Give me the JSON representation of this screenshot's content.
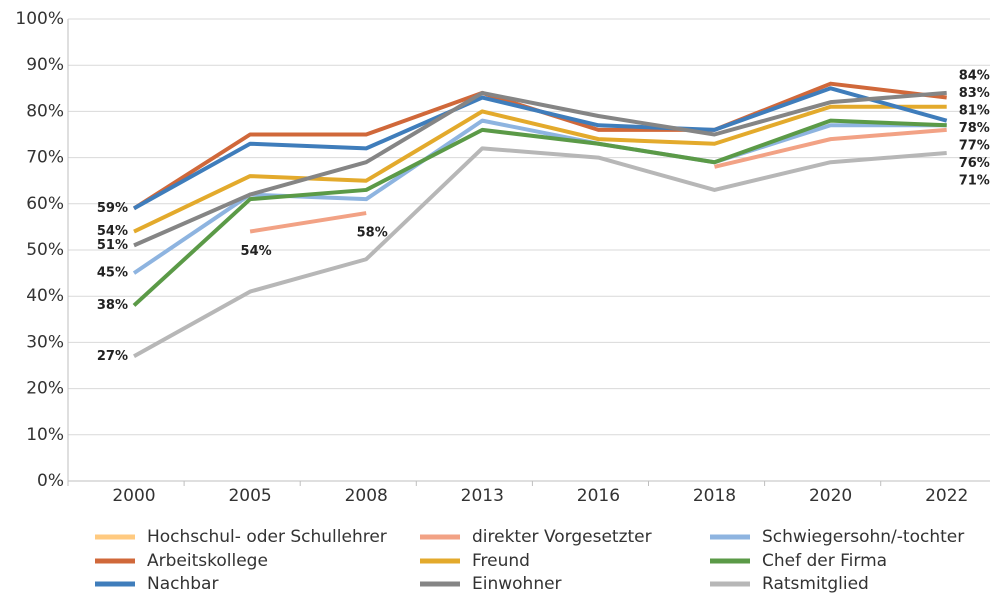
{
  "chart_data": {
    "type": "line",
    "categories": [
      "2000",
      "2005",
      "2008",
      "2013",
      "2016",
      "2018",
      "2020",
      "2022"
    ],
    "ylim": [
      0,
      100
    ],
    "yticks": [
      {
        "value": 0,
        "label": "0%"
      },
      {
        "value": 10,
        "label": "10%"
      },
      {
        "value": 20,
        "label": "20%"
      },
      {
        "value": 30,
        "label": "30%"
      },
      {
        "value": 40,
        "label": "40%"
      },
      {
        "value": 50,
        "label": "50%"
      },
      {
        "value": 60,
        "label": "60%"
      },
      {
        "value": 70,
        "label": "70%"
      },
      {
        "value": 80,
        "label": "80%"
      },
      {
        "value": 90,
        "label": "90%"
      },
      {
        "value": 100,
        "label": "100%"
      }
    ],
    "grid": true,
    "series": [
      {
        "name": "Hochschul- oder Schullehrer",
        "color": "#ffca80",
        "values": [
          null,
          null,
          null,
          null,
          null,
          null,
          null,
          null
        ]
      },
      {
        "name": "direkter Vorgesetzter",
        "color": "#f2a285",
        "values": [
          null,
          54,
          58,
          null,
          null,
          68,
          74,
          76
        ],
        "value_labels": [
          null,
          "54%",
          "58%",
          null,
          null,
          null,
          null,
          "76%"
        ]
      },
      {
        "name": "Schwiegersohn/-tochter",
        "color": "#8eb4e0",
        "values": [
          45,
          62,
          61,
          78,
          73,
          69,
          77,
          77
        ],
        "value_labels": [
          "45%",
          null,
          null,
          null,
          null,
          null,
          null,
          "77%"
        ]
      },
      {
        "name": "Arbeitskollege",
        "color": "#d0683a",
        "values": [
          59,
          75,
          75,
          84,
          76,
          76,
          86,
          83
        ],
        "value_labels": [
          "59%",
          null,
          null,
          null,
          null,
          null,
          null,
          "83%"
        ]
      },
      {
        "name": "Freund",
        "color": "#e3aa2c",
        "values": [
          54,
          66,
          65,
          80,
          74,
          73,
          81,
          81
        ],
        "value_labels": [
          "54%",
          null,
          null,
          null,
          null,
          null,
          null,
          "81%"
        ]
      },
      {
        "name": "Chef der Firma",
        "color": "#5b9a47",
        "values": [
          38,
          61,
          63,
          76,
          73,
          69,
          78,
          77
        ],
        "value_labels": [
          "38%",
          null,
          null,
          null,
          null,
          null,
          null,
          null
        ]
      },
      {
        "name": "Nachbar",
        "color": "#3f7dbb",
        "values": [
          59,
          73,
          72,
          83,
          77,
          76,
          85,
          78
        ],
        "value_labels": [
          null,
          null,
          null,
          null,
          null,
          null,
          null,
          "78%"
        ]
      },
      {
        "name": "Einwohner",
        "color": "#858585",
        "values": [
          51,
          62,
          69,
          84,
          79,
          75,
          82,
          84
        ],
        "value_labels": [
          "51%",
          null,
          null,
          null,
          null,
          null,
          null,
          "84%"
        ]
      },
      {
        "name": "Ratsmitglied",
        "color": "#b7b7b7",
        "values": [
          27,
          41,
          48,
          72,
          70,
          63,
          69,
          71
        ],
        "value_labels": [
          "27%",
          null,
          null,
          null,
          null,
          null,
          null,
          "71%"
        ]
      }
    ]
  }
}
